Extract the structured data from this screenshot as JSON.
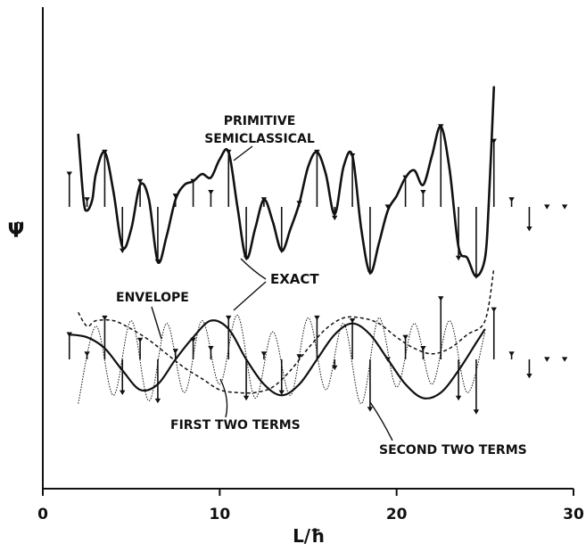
{
  "chart_data": {
    "type": "line",
    "xlabel": "L/ħ",
    "ylabel": "Ψ̃",
    "xlim": [
      0,
      30
    ],
    "xticks": [
      "0",
      "10",
      "20",
      "30"
    ],
    "grid": false,
    "upper_panel": {
      "exact_x": [
        1.5,
        2.5,
        3.5,
        4.5,
        5.5,
        6.5,
        7.5,
        8.5,
        9.5,
        10.5,
        11.5,
        12.5,
        13.5,
        14.5,
        15.5,
        16.5,
        17.5,
        18.5,
        19.5,
        20.5,
        21.5,
        22.5,
        23.5,
        24.5,
        25.5,
        26.5,
        27.5,
        28.5,
        29.5
      ],
      "exact_y": [
        0.45,
        0.1,
        0.75,
        -0.6,
        0.35,
        -0.75,
        0.15,
        0.35,
        0.2,
        0.75,
        -0.7,
        0.1,
        -0.6,
        0.05,
        0.75,
        -0.15,
        0.7,
        -0.9,
        0.0,
        0.4,
        0.2,
        1.1,
        -0.7,
        -0.95,
        0.9,
        0.1,
        -0.3,
        0.0,
        0.0
      ],
      "semiclassical_x": [
        2.0,
        2.3,
        2.5,
        2.8,
        3.0,
        3.5,
        4.0,
        4.5,
        5.0,
        5.5,
        6.0,
        6.5,
        7.0,
        7.5,
        8.0,
        8.5,
        9.0,
        9.5,
        10.0,
        10.5,
        11.0,
        11.5,
        12.0,
        12.5,
        13.0,
        13.5,
        14.0,
        14.5,
        15.0,
        15.5,
        16.0,
        16.5,
        17.0,
        17.5,
        18.0,
        18.5,
        19.0,
        19.5,
        20.0,
        20.5,
        21.0,
        21.5,
        22.0,
        22.5,
        23.0,
        23.5,
        24.0,
        24.5,
        25.0,
        25.2,
        25.5
      ],
      "semiclassical_y": [
        1.0,
        0.1,
        -0.05,
        0.1,
        0.45,
        0.75,
        0.2,
        -0.55,
        -0.3,
        0.3,
        0.1,
        -0.75,
        -0.4,
        0.1,
        0.3,
        0.35,
        0.45,
        0.4,
        0.65,
        0.75,
        0.0,
        -0.7,
        -0.3,
        0.1,
        -0.2,
        -0.6,
        -0.3,
        0.05,
        0.55,
        0.75,
        0.45,
        -0.1,
        0.55,
        0.7,
        -0.3,
        -0.9,
        -0.5,
        -0.05,
        0.15,
        0.4,
        0.5,
        0.3,
        0.7,
        1.1,
        0.5,
        -0.55,
        -0.7,
        -0.95,
        -0.7,
        0.0,
        1.65
      ]
    },
    "lower_panel": {
      "exact_x": [
        1.5,
        2.5,
        3.5,
        4.5,
        5.5,
        6.5,
        7.5,
        8.5,
        9.5,
        10.5,
        11.5,
        12.5,
        13.5,
        14.5,
        15.5,
        16.5,
        17.5,
        18.5,
        19.5,
        20.5,
        21.5,
        22.5,
        23.5,
        24.5,
        25.5,
        26.5,
        27.5,
        28.5,
        29.5
      ],
      "exact_y": [
        0.45,
        0.1,
        0.75,
        -0.6,
        0.35,
        -0.75,
        0.15,
        0.35,
        0.2,
        0.75,
        -0.7,
        0.1,
        -0.6,
        0.05,
        0.75,
        -0.15,
        0.7,
        -0.9,
        0.0,
        0.4,
        0.2,
        1.1,
        -0.7,
        -0.95,
        0.9,
        0.1,
        -0.3,
        0.0,
        0.0
      ],
      "envelope_x": [
        2.0,
        2.5,
        3.0,
        4.0,
        5.0,
        6.0,
        7.0,
        8.0,
        9.0,
        10.0,
        11.0,
        12.0,
        13.0,
        14.0,
        15.0,
        16.0,
        17.0,
        18.0,
        19.0,
        20.0,
        21.0,
        22.0,
        23.0,
        24.0,
        25.0,
        25.5
      ],
      "envelope_y": [
        0.85,
        0.6,
        0.7,
        0.7,
        0.55,
        0.35,
        0.1,
        -0.15,
        -0.35,
        -0.55,
        -0.6,
        -0.6,
        -0.5,
        -0.2,
        0.2,
        0.55,
        0.75,
        0.75,
        0.65,
        0.4,
        0.2,
        0.1,
        0.2,
        0.45,
        0.7,
        1.65
      ],
      "first_two_terms_x": [
        1.5,
        2.5,
        3.5,
        4.5,
        5.5,
        6.5,
        7.5,
        8.5,
        9.5,
        10.5,
        11.5,
        12.5,
        13.5,
        14.5,
        15.5,
        16.5,
        17.5,
        18.5,
        19.5,
        20.5,
        21.5,
        22.5,
        23.5,
        24.5,
        25.0
      ],
      "first_two_terms_y": [
        0.45,
        0.4,
        0.2,
        -0.2,
        -0.55,
        -0.45,
        0.0,
        0.4,
        0.7,
        0.55,
        0.0,
        -0.45,
        -0.65,
        -0.45,
        0.0,
        0.45,
        0.65,
        0.45,
        0.0,
        -0.45,
        -0.7,
        -0.6,
        -0.2,
        0.3,
        0.55
      ],
      "second_two_terms_x": [
        2.0,
        3.0,
        4.0,
        5.0,
        6.0,
        7.0,
        8.0,
        9.0,
        10.0,
        11.0,
        12.0,
        13.0,
        14.0,
        15.0,
        16.0,
        17.0,
        18.0,
        19.0,
        20.0,
        21.0,
        22.0,
        23.0,
        24.0,
        25.0
      ],
      "second_two_terms_y": [
        -0.8,
        0.6,
        -0.65,
        0.7,
        -0.75,
        0.65,
        -0.6,
        0.7,
        -0.45,
        0.8,
        -0.7,
        0.5,
        -0.65,
        0.75,
        -0.55,
        0.65,
        -0.8,
        0.75,
        -0.5,
        0.65,
        -0.45,
        0.7,
        -0.6,
        0.5
      ]
    },
    "annotations": [
      "PRIMITIVE",
      "SEMICLASSICAL",
      "EXACT",
      "ENVELOPE",
      "FIRST TWO TERMS",
      "SECOND TWO TERMS"
    ]
  }
}
